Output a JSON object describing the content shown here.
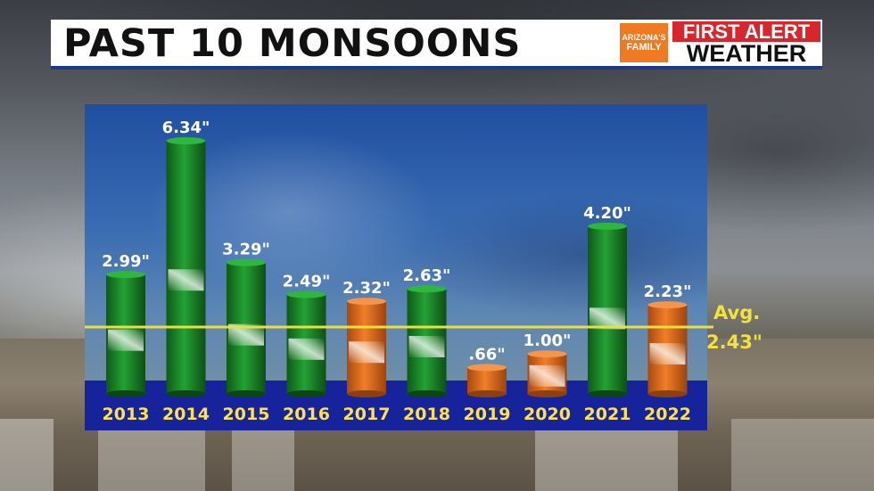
{
  "header": {
    "title": "PAST 10 MONSOONS",
    "logo_left_line1": "ARIZONA'S",
    "logo_left_line2": "FAMILY",
    "logo_right_line1": "FIRST ALERT",
    "logo_right_line2": "WEATHER"
  },
  "colors": {
    "green_bar": "#1e8a2a",
    "orange_bar": "#e2701f",
    "avg_line": "#e9e13a",
    "axis_band": "#17239a",
    "tick_text": "#ffe24a"
  },
  "chart_data": {
    "type": "bar",
    "categories": [
      "2013",
      "2014",
      "2015",
      "2016",
      "2017",
      "2018",
      "2019",
      "2020",
      "2021",
      "2022"
    ],
    "values": [
      2.99,
      6.34,
      3.29,
      2.49,
      2.32,
      2.63,
      0.66,
      1.0,
      4.2,
      2.23
    ],
    "data_labels": [
      "2.99\"",
      "6.34\"",
      "3.29\"",
      "2.49\"",
      "2.32\"",
      "2.63\"",
      ".66\"",
      "1.00\"",
      "4.20\"",
      "2.23\""
    ],
    "bar_colors": [
      "green",
      "green",
      "green",
      "green",
      "orange",
      "green",
      "orange",
      "orange",
      "green",
      "orange"
    ],
    "average": 2.43,
    "average_label_line1": "Avg.",
    "average_label_line2": "2.43\"",
    "ylim": [
      0,
      6.34
    ],
    "title": "",
    "xlabel": "",
    "ylabel": "",
    "grid": false
  }
}
